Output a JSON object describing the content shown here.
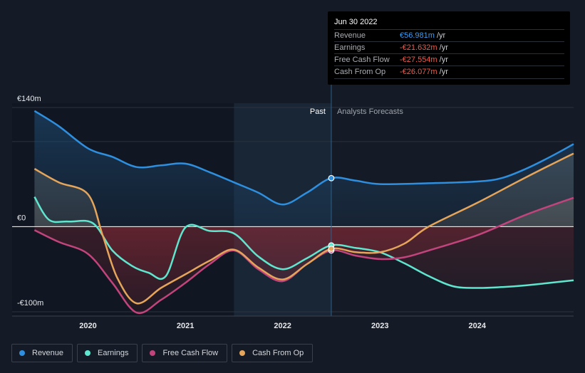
{
  "chart_data": {
    "type": "line",
    "title": "",
    "currency_unit": "€m",
    "y_ticks": [
      {
        "value": 140,
        "label": "€140m"
      },
      {
        "value": 0,
        "label": "€0"
      },
      {
        "value": -100,
        "label": "-€100m"
      }
    ],
    "x_ticks": [
      {
        "value": 2020,
        "label": "2020"
      },
      {
        "value": 2021,
        "label": "2021"
      },
      {
        "value": 2022,
        "label": "2022"
      },
      {
        "value": 2023,
        "label": "2023"
      },
      {
        "value": 2024,
        "label": "2024"
      }
    ],
    "xlim": [
      2019.22,
      2024.99
    ],
    "ylim": [
      -105,
      145
    ],
    "past_label": "Past",
    "forecast_label": "Analysts Forecasts",
    "divider_x": 2022.5,
    "highlight_range": [
      2021.5,
      2022.5
    ],
    "series": [
      {
        "name": "Revenue",
        "color": "#2f8fdf",
        "x": [
          2019.45,
          2019.7,
          2020.0,
          2020.25,
          2020.5,
          2020.75,
          2021.0,
          2021.25,
          2021.5,
          2021.75,
          2022.0,
          2022.25,
          2022.5,
          2022.75,
          2023.0,
          2023.5,
          2024.0,
          2024.25,
          2024.5,
          2024.75,
          2024.99
        ],
        "y": [
          136,
          118,
          92,
          82,
          70,
          72,
          74,
          64,
          52,
          40,
          26,
          40,
          57,
          54,
          50,
          51,
          53,
          57,
          68,
          82,
          97
        ]
      },
      {
        "name": "Earnings",
        "color": "#5ee6cf",
        "x": [
          2019.45,
          2019.6,
          2019.8,
          2020.05,
          2020.25,
          2020.45,
          2020.62,
          2020.8,
          2021.0,
          2021.25,
          2021.5,
          2021.75,
          2022.0,
          2022.25,
          2022.5,
          2022.75,
          2023.0,
          2023.25,
          2023.5,
          2023.75,
          2024.0,
          2024.25,
          2024.5,
          2024.99
        ],
        "y": [
          35,
          8,
          6,
          4,
          -28,
          -46,
          -54,
          -58,
          -1,
          -5,
          -8,
          -35,
          -50,
          -37,
          -22,
          -25,
          -30,
          -43,
          -58,
          -70,
          -72,
          -71,
          -69,
          -63
        ]
      },
      {
        "name": "Free Cash Flow",
        "color": "#c2447d",
        "x": [
          2019.45,
          2019.7,
          2020.0,
          2020.25,
          2020.5,
          2020.75,
          2021.0,
          2021.25,
          2021.5,
          2021.75,
          2022.0,
          2022.25,
          2022.5,
          2022.75,
          2023.0,
          2023.25,
          2023.5,
          2024.0,
          2024.5,
          2024.99
        ],
        "y": [
          -4,
          -18,
          -32,
          -66,
          -101,
          -86,
          -66,
          -44,
          -28,
          -50,
          -64,
          -44,
          -28,
          -34,
          -38,
          -36,
          -28,
          -10,
          14,
          34
        ]
      },
      {
        "name": "Cash From Op",
        "color": "#e5a55a",
        "x": [
          2019.45,
          2019.7,
          2020.0,
          2020.15,
          2020.3,
          2020.5,
          2020.75,
          2021.0,
          2021.25,
          2021.5,
          2021.75,
          2022.0,
          2022.25,
          2022.5,
          2022.75,
          2023.0,
          2023.25,
          2023.5,
          2024.0,
          2024.5,
          2024.99
        ],
        "y": [
          68,
          52,
          38,
          -10,
          -60,
          -90,
          -72,
          -56,
          -40,
          -27,
          -48,
          -62,
          -44,
          -26,
          -30,
          -30,
          -20,
          0,
          28,
          58,
          86
        ]
      }
    ]
  },
  "tooltip": {
    "date": "Jun 30 2022",
    "rows": [
      {
        "label": "Revenue",
        "value": "€56.981m",
        "unit": " /yr",
        "color": "#3b9cf0"
      },
      {
        "label": "Earnings",
        "value": "-€21.632m",
        "unit": " /yr",
        "color": "#f15b4d"
      },
      {
        "label": "Free Cash Flow",
        "value": "-€27.554m",
        "unit": " /yr",
        "color": "#f15b4d"
      },
      {
        "label": "Cash From Op",
        "value": "-€26.077m",
        "unit": " /yr",
        "color": "#f15b4d"
      }
    ]
  },
  "legend": [
    {
      "label": "Revenue",
      "color": "#2f8fdf"
    },
    {
      "label": "Earnings",
      "color": "#5ee6cf"
    },
    {
      "label": "Free Cash Flow",
      "color": "#c2447d"
    },
    {
      "label": "Cash From Op",
      "color": "#e5a55a"
    }
  ]
}
